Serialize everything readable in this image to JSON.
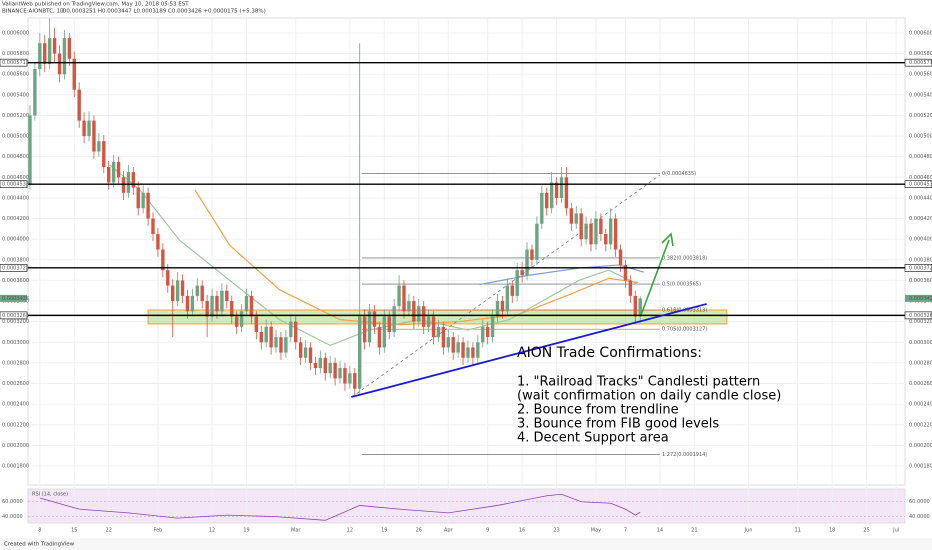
{
  "chart_data": {
    "type": "candlestick",
    "publisher": "ValiantWeb published on TradingView.com, May 10, 2018 05:53 EST",
    "symbol": "BINANCE:AIONBTC, 1D",
    "quote": "O0.0003251 H0.0003447 L0.0003189 C0.0003426 +0.0000175 (+5.38%)",
    "footer": "Created with TradingView",
    "up_color": "#6ba583",
    "down_color": "#d75442",
    "xlim": [
      -0.4,
      177.8
    ],
    "ylim": [
      0.0001616,
      0.0006145
    ],
    "xticks": [
      {
        "value": 2,
        "label": "8"
      },
      {
        "value": 9,
        "label": "15"
      },
      {
        "value": 16,
        "label": "22"
      },
      {
        "value": 26,
        "label": "Feb"
      },
      {
        "value": 37,
        "label": "12"
      },
      {
        "value": 44,
        "label": "19"
      },
      {
        "value": 54,
        "label": "Mar"
      },
      {
        "value": 65,
        "label": "12"
      },
      {
        "value": 72,
        "label": "19"
      },
      {
        "value": 79,
        "label": "26"
      },
      {
        "value": 85,
        "label": "Apr"
      },
      {
        "value": 93,
        "label": "9"
      },
      {
        "value": 100,
        "label": "16"
      },
      {
        "value": 107,
        "label": "23"
      },
      {
        "value": 115,
        "label": "May"
      },
      {
        "value": 121,
        "label": "7"
      },
      {
        "value": 128,
        "label": "14"
      },
      {
        "value": 135,
        "label": "21"
      },
      {
        "value": 146,
        "label": "Jun"
      },
      {
        "value": 156,
        "label": "11"
      },
      {
        "value": 163,
        "label": "18"
      },
      {
        "value": 170,
        "label": "25"
      },
      {
        "value": 176,
        "label": "Jul"
      }
    ],
    "yticks": [
      {
        "value": 0.0006,
        "label": "0.0006000"
      },
      {
        "value": 0.00058,
        "label": "0.0005800"
      },
      {
        "value": 0.00056,
        "label": "0.0005600"
      },
      {
        "value": 0.00054,
        "label": "0.0005400"
      },
      {
        "value": 0.00052,
        "label": "0.0005200"
      },
      {
        "value": 0.0005,
        "label": "0.0005000"
      },
      {
        "value": 0.00048,
        "label": "0.0004800"
      },
      {
        "value": 0.00046,
        "label": "0.0004600"
      },
      {
        "value": 0.00044,
        "label": "0.0004400"
      },
      {
        "value": 0.00042,
        "label": "0.0004200"
      },
      {
        "value": 0.0004,
        "label": "0.0004000"
      },
      {
        "value": 0.00038,
        "label": "0.0003800"
      },
      {
        "value": 0.00036,
        "label": "0.0003600"
      },
      {
        "value": 0.00034,
        "label": "0.0003400"
      },
      {
        "value": 0.00032,
        "label": "0.0003200"
      },
      {
        "value": 0.0003,
        "label": "0.0003000"
      },
      {
        "value": 0.00028,
        "label": "0.0002800"
      },
      {
        "value": 0.00026,
        "label": "0.0002600"
      },
      {
        "value": 0.00024,
        "label": "0.0002400"
      },
      {
        "value": 0.00022,
        "label": "0.0002200"
      },
      {
        "value": 0.0002,
        "label": "0.0002000"
      },
      {
        "value": 0.00018,
        "label": "0.0001800"
      }
    ],
    "grid": true,
    "candles": [
      [
        0.000453,
        0.00053,
        0.000448,
        0.00052
      ],
      [
        0.00052,
        0.000572,
        0.000515,
        0.000565
      ],
      [
        0.000565,
        0.0006,
        0.000558,
        0.00059
      ],
      [
        0.00059,
        0.000598,
        0.000562,
        0.00057
      ],
      [
        0.00057,
        0.000614,
        0.000565,
        0.000595
      ],
      [
        0.000595,
        0.000605,
        0.000572,
        0.00058
      ],
      [
        0.00058,
        0.000588,
        0.000552,
        0.00056
      ],
      [
        0.00056,
        0.000603,
        0.000555,
        0.000595
      ],
      [
        0.000595,
        0.0006,
        0.000568,
        0.000575
      ],
      [
        0.000575,
        0.000582,
        0.000538,
        0.000545
      ],
      [
        0.000545,
        0.000552,
        0.000508,
        0.000515
      ],
      [
        0.000515,
        0.000523,
        0.000493,
        0.0005
      ],
      [
        0.0005,
        0.000524,
        0.000495,
        0.000515
      ],
      [
        0.000515,
        0.00052,
        0.000478,
        0.000485
      ],
      [
        0.000485,
        0.000503,
        0.00048,
        0.000495
      ],
      [
        0.000495,
        0.000501,
        0.000464,
        0.00047
      ],
      [
        0.00047,
        0.000476,
        0.000448,
        0.000455
      ],
      [
        0.000455,
        0.000482,
        0.00045,
        0.000475
      ],
      [
        0.000475,
        0.00048,
        0.000453,
        0.00046
      ],
      [
        0.00046,
        0.000466,
        0.000438,
        0.000445
      ],
      [
        0.000445,
        0.000472,
        0.00044,
        0.000465
      ],
      [
        0.000465,
        0.00047,
        0.000443,
        0.00045
      ],
      [
        0.00045,
        0.000456,
        0.000423,
        0.00043
      ],
      [
        0.00043,
        0.000452,
        0.000425,
        0.000445
      ],
      [
        0.000445,
        0.00045,
        0.000413,
        0.00042
      ],
      [
        0.00042,
        0.000426,
        0.000398,
        0.000405
      ],
      [
        0.000405,
        0.000411,
        0.000383,
        0.00039
      ],
      [
        0.00039,
        0.000396,
        0.000363,
        0.00037
      ],
      [
        0.00037,
        0.000376,
        0.000348,
        0.000355
      ],
      [
        0.000355,
        0.000361,
        0.000305,
        0.00034
      ],
      [
        0.00034,
        0.000368,
        0.000335,
        0.00036
      ],
      [
        0.00036,
        0.000366,
        0.000338,
        0.000345
      ],
      [
        0.000345,
        0.000351,
        0.000323,
        0.00033
      ],
      [
        0.00033,
        0.000352,
        0.000325,
        0.000345
      ],
      [
        0.000345,
        0.000362,
        0.00034,
        0.000355
      ],
      [
        0.000355,
        0.00036,
        0.000333,
        0.00034
      ],
      [
        0.00034,
        0.000346,
        0.000305,
        0.000325
      ],
      [
        0.000325,
        0.000352,
        0.00032,
        0.000345
      ],
      [
        0.000345,
        0.00035,
        0.000323,
        0.00033
      ],
      [
        0.00033,
        0.000357,
        0.000325,
        0.00035
      ],
      [
        0.00035,
        0.000356,
        0.000333,
        0.00034
      ],
      [
        0.00034,
        0.000345,
        0.000318,
        0.000325
      ],
      [
        0.000325,
        0.00033,
        0.000308,
        0.000315
      ],
      [
        0.000315,
        0.000337,
        0.00031,
        0.00033
      ],
      [
        0.00033,
        0.000352,
        0.000325,
        0.000345
      ],
      [
        0.000345,
        0.00035,
        0.000318,
        0.000325
      ],
      [
        0.000325,
        0.00033,
        0.000303,
        0.00031
      ],
      [
        0.00031,
        0.000316,
        0.000293,
        0.0003
      ],
      [
        0.0003,
        0.000322,
        0.000295,
        0.000315
      ],
      [
        0.000315,
        0.00032,
        0.000288,
        0.000295
      ],
      [
        0.000295,
        0.000312,
        0.00029,
        0.000305
      ],
      [
        0.000305,
        0.00031,
        0.000283,
        0.00029
      ],
      [
        0.00029,
        0.000312,
        0.000285,
        0.000305
      ],
      [
        0.000305,
        0.000327,
        0.0003,
        0.00032
      ],
      [
        0.00032,
        0.000325,
        0.000293,
        0.0003
      ],
      [
        0.0003,
        0.000305,
        0.000278,
        0.000285
      ],
      [
        0.000285,
        0.000302,
        0.00028,
        0.000295
      ],
      [
        0.000295,
        0.0003,
        0.000273,
        0.00028
      ],
      [
        0.00028,
        0.000286,
        0.000268,
        0.000275
      ],
      [
        0.000275,
        0.000292,
        0.00027,
        0.000285
      ],
      [
        0.000285,
        0.00029,
        0.000263,
        0.00027
      ],
      [
        0.00027,
        0.000287,
        0.000265,
        0.00028
      ],
      [
        0.00028,
        0.000285,
        0.000258,
        0.000265
      ],
      [
        0.000265,
        0.000282,
        0.00026,
        0.000275
      ],
      [
        0.000275,
        0.00028,
        0.000253,
        0.00026
      ],
      [
        0.00026,
        0.000277,
        0.000255,
        0.00027
      ],
      [
        0.00027,
        0.000275,
        0.000248,
        0.000255
      ],
      [
        0.000255,
        0.00059,
        0.00025,
        0.000325
      ],
      [
        0.000325,
        0.000332,
        0.000293,
        0.0003
      ],
      [
        0.0003,
        0.000337,
        0.000295,
        0.00033
      ],
      [
        0.00033,
        0.000336,
        0.000308,
        0.000315
      ],
      [
        0.000315,
        0.00032,
        0.000288,
        0.000295
      ],
      [
        0.000295,
        0.000332,
        0.00029,
        0.000325
      ],
      [
        0.000325,
        0.00033,
        0.000303,
        0.00031
      ],
      [
        0.00031,
        0.000342,
        0.000305,
        0.000335
      ],
      [
        0.000335,
        0.000365,
        0.00033,
        0.000355
      ],
      [
        0.000355,
        0.00036,
        0.000323,
        0.00033
      ],
      [
        0.00033,
        0.000347,
        0.000325,
        0.00034
      ],
      [
        0.00034,
        0.000345,
        0.000313,
        0.00032
      ],
      [
        0.00032,
        0.000342,
        0.000315,
        0.000335
      ],
      [
        0.000335,
        0.00034,
        0.000308,
        0.000315
      ],
      [
        0.000315,
        0.000332,
        0.00031,
        0.000325
      ],
      [
        0.000325,
        0.00033,
        0.000298,
        0.000305
      ],
      [
        0.000305,
        0.000322,
        0.0003,
        0.000315
      ],
      [
        0.000315,
        0.00032,
        0.000288,
        0.000295
      ],
      [
        0.000295,
        0.000312,
        0.00029,
        0.000305
      ],
      [
        0.000305,
        0.00031,
        0.000283,
        0.00029
      ],
      [
        0.00029,
        0.000307,
        0.000285,
        0.0003
      ],
      [
        0.0003,
        0.000305,
        0.000278,
        0.000285
      ],
      [
        0.000285,
        0.000302,
        0.00028,
        0.000295
      ],
      [
        0.000295,
        0.0003,
        0.000278,
        0.000285
      ],
      [
        0.000285,
        0.000307,
        0.00028,
        0.0003
      ],
      [
        0.0003,
        0.000322,
        0.000295,
        0.000315
      ],
      [
        0.000315,
        0.00032,
        0.000298,
        0.000305
      ],
      [
        0.000305,
        0.000332,
        0.0003,
        0.000325
      ],
      [
        0.000325,
        0.000347,
        0.00032,
        0.00034
      ],
      [
        0.00034,
        0.000345,
        0.000323,
        0.00033
      ],
      [
        0.00033,
        0.000362,
        0.000325,
        0.000355
      ],
      [
        0.000355,
        0.00036,
        0.000338,
        0.000345
      ],
      [
        0.000345,
        0.000377,
        0.00034,
        0.00037
      ],
      [
        0.00037,
        0.000378,
        0.000358,
        0.000365
      ],
      [
        0.000365,
        0.000397,
        0.00036,
        0.00039
      ],
      [
        0.00039,
        0.000395,
        0.000373,
        0.00038
      ],
      [
        0.00038,
        0.000422,
        0.000375,
        0.000415
      ],
      [
        0.000415,
        0.000452,
        0.00041,
        0.000445
      ],
      [
        0.000445,
        0.00045,
        0.000423,
        0.00043
      ],
      [
        0.00043,
        0.000465,
        0.000425,
        0.000455
      ],
      [
        0.000455,
        0.00046,
        0.000433,
        0.00044
      ],
      [
        0.00044,
        0.00047,
        0.000435,
        0.00046
      ],
      [
        0.00046,
        0.00047,
        0.000423,
        0.00043
      ],
      [
        0.00043,
        0.000435,
        0.000408,
        0.000415
      ],
      [
        0.000415,
        0.000432,
        0.00041,
        0.000425
      ],
      [
        0.000425,
        0.00043,
        0.000393,
        0.0004
      ],
      [
        0.0004,
        0.000422,
        0.000395,
        0.000415
      ],
      [
        0.000415,
        0.00042,
        0.000388,
        0.000395
      ],
      [
        0.000395,
        0.000427,
        0.00039,
        0.00042
      ],
      [
        0.00042,
        0.000425,
        0.000398,
        0.000405
      ],
      [
        0.000405,
        0.00041,
        0.000388,
        0.000395
      ],
      [
        0.000395,
        0.00043,
        0.00039,
        0.00042
      ],
      [
        0.00042,
        0.000425,
        0.000383,
        0.00039
      ],
      [
        0.00039,
        0.000395,
        0.000368,
        0.000375
      ],
      [
        0.000375,
        0.00038,
        0.000353,
        0.00036
      ],
      [
        0.00036,
        0.000365,
        0.000338,
        0.000345
      ],
      [
        0.000345,
        0.00035,
        0.000318,
        0.0003251
      ],
      [
        0.0003251,
        0.0003447,
        0.0003189,
        0.0003426
      ]
    ],
    "lines": [
      {
        "color": "#f5a04a",
        "x": [
          33.5,
          40.6,
          50.7,
          63,
          75,
          87,
          99.3,
          109.5,
          117.6,
          123.6
        ],
        "values": [
          0.000448,
          0.000394,
          0.000351,
          0.000322,
          0.000317,
          0.00032,
          0.000327,
          0.000346,
          0.000362,
          0.000358
        ]
      },
      {
        "color": "#9cc79a",
        "x": [
          16.2,
          22.3,
          30.4,
          40.6,
          50.7,
          61,
          69,
          79,
          89,
          97.4,
          104.5,
          111.5,
          117.6,
          123.6
        ],
        "values": [
          0.000472,
          0.000448,
          0.000399,
          0.00036,
          0.000322,
          0.000297,
          0.000312,
          0.000322,
          0.000312,
          0.000322,
          0.000341,
          0.00036,
          0.00037,
          0.000356
        ]
      },
      {
        "color": "#7a9fd1",
        "x": [
          91.3,
          101.4,
          111.5,
          119.7,
          124.7
        ],
        "values": [
          0.000356,
          0.000365,
          0.000372,
          0.000375,
          0.000368
        ]
      }
    ],
    "levels": [
      0.0005712,
      0.0004533,
      0.0003722,
      0.0003261
    ],
    "last_price": 0.0003426,
    "zone": {
      "x": [
        24,
        141.6
      ],
      "y": [
        0.0003178,
        0.0003313
      ]
    },
    "trendline": {
      "x": [
        65.3,
        137.5
      ],
      "y": [
        0.0002469,
        0.0003372
      ],
      "color": "#1a1ad6"
    },
    "fib": [
      {
        "label": "0(0.0004635)",
        "value": 0.0004635,
        "color": "#555555"
      },
      {
        "label": "0.382(0.0003818)",
        "value": 0.0003818,
        "color": "#555555"
      },
      {
        "label": "0.5(0.0003565)",
        "value": 0.0003565,
        "color": "#555555"
      },
      {
        "label": "0.618(0.0003313)",
        "value": 0.0003313,
        "color": "#e0554d"
      },
      {
        "label": "0.705(0.0003127)",
        "value": 0.0003127,
        "color": "#e0554d"
      },
      {
        "label": "1.272(0.0001914)",
        "value": 0.0001914,
        "color": "#555555"
      }
    ],
    "annotation": {
      "title": "AION Trade Confirmations:",
      "lines": [
        "1. \"Railroad Tracks\" Candlesti pattern",
        "(wait confirmation on daily candle close)",
        "2. Bounce from trendline",
        "3. Bounce from FIB good levels",
        "4. Decent Support area"
      ]
    },
    "rsi": {
      "label": "RSI (14, close)",
      "color": "#8e44ad",
      "ylim": [
        31.4,
        77.1
      ],
      "yticks": [
        {
          "value": 60,
          "label": "60.0000"
        },
        {
          "value": 40,
          "label": "40.0000"
        }
      ],
      "x": [
        2,
        10,
        20,
        30,
        40,
        50,
        60,
        67,
        75,
        85,
        95,
        105,
        108,
        112,
        118,
        121,
        123,
        124
      ],
      "values": [
        65,
        50,
        45,
        38,
        42,
        40,
        35,
        55,
        50,
        45,
        55,
        68,
        70,
        60,
        58,
        50,
        42,
        46
      ]
    }
  }
}
